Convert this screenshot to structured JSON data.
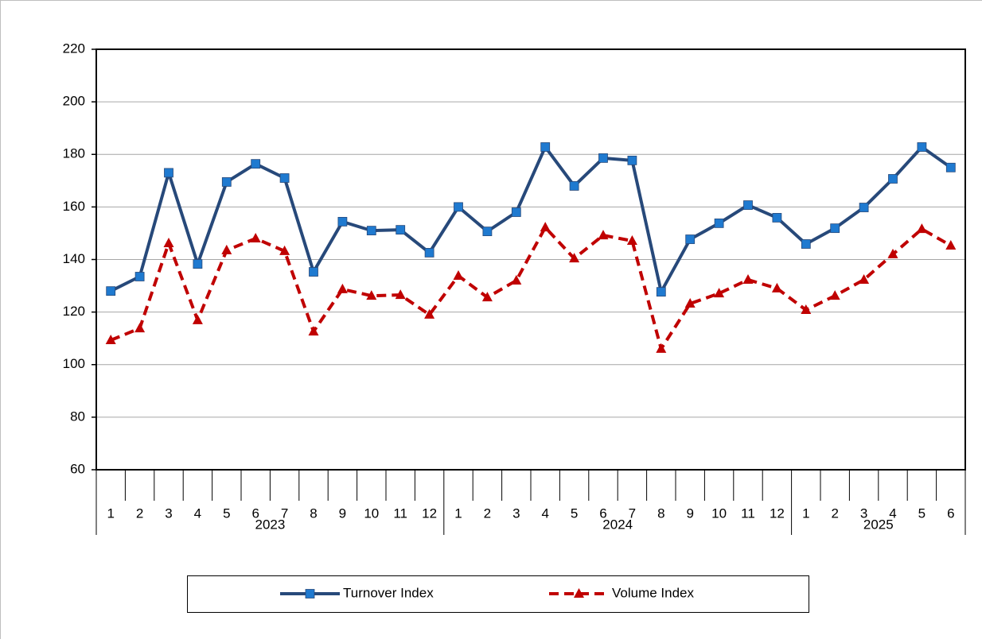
{
  "chart_data": {
    "type": "line",
    "category_groups": [
      {
        "label": "2023",
        "categories": [
          "1",
          "2",
          "3",
          "4",
          "5",
          "6",
          "7",
          "8",
          "9",
          "10",
          "11",
          "12"
        ]
      },
      {
        "label": "2024",
        "categories": [
          "1",
          "2",
          "3",
          "4",
          "5",
          "6",
          "7",
          "8",
          "9",
          "10",
          "11",
          "12"
        ]
      },
      {
        "label": "2025",
        "categories": [
          "1",
          "2",
          "3",
          "4",
          "5",
          "6"
        ]
      }
    ],
    "series": [
      {
        "name": "Turnover Index",
        "color": "#27497a",
        "marker": "square",
        "marker_color": "#1f7ad0",
        "dashed": false,
        "values": [
          128,
          133.5,
          173,
          138.3,
          169.5,
          176.4,
          171,
          135.3,
          154.4,
          151,
          151.3,
          142.6,
          160,
          150.7,
          158,
          182.8,
          168,
          178.6,
          177.7,
          127.7,
          147.7,
          153.8,
          160.7,
          155.9,
          145.9,
          151.9,
          159.8,
          170.7,
          182.8,
          175
        ]
      },
      {
        "name": "Volume Index",
        "color": "#c00000",
        "marker": "triangle",
        "marker_color": "#c00000",
        "dashed": true,
        "values": [
          109.3,
          113.8,
          146.2,
          116.9,
          143.5,
          148,
          143.2,
          112.6,
          128.7,
          126.2,
          126.5,
          119,
          133.8,
          125.6,
          132,
          152.2,
          140.4,
          149.2,
          147.1,
          106,
          123.2,
          127.1,
          132.3,
          129,
          120.8,
          126.2,
          132.3,
          142,
          151.6,
          145.3
        ]
      }
    ],
    "ylim": [
      60,
      220
    ],
    "yticks": [
      60,
      80,
      100,
      120,
      140,
      160,
      180,
      200,
      220
    ],
    "grid": true,
    "legend": "bottom"
  }
}
